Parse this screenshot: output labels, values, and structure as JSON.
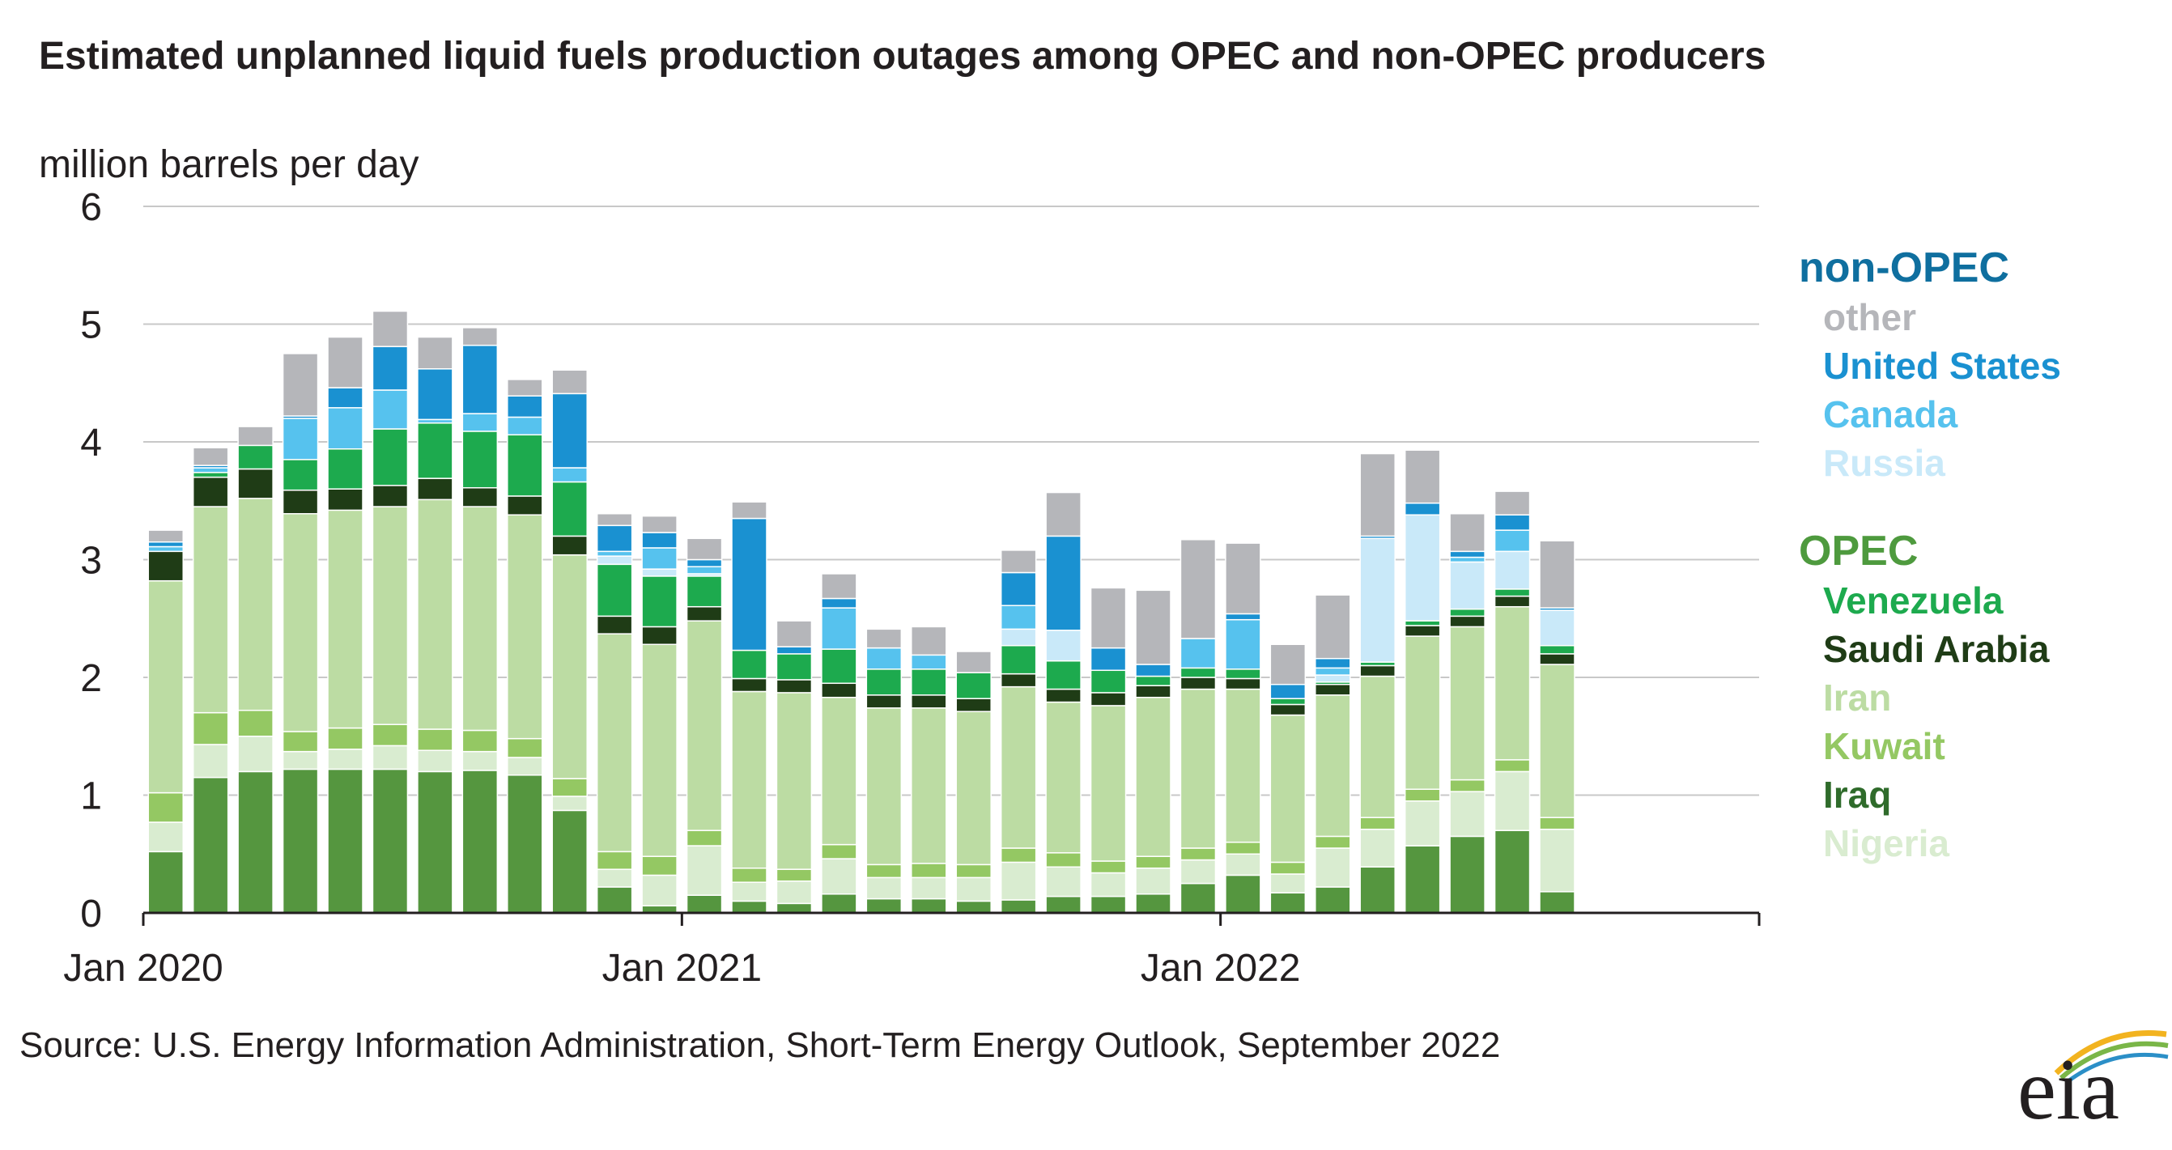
{
  "title": "Estimated unplanned liquid fuels production outages among OPEC and non-OPEC producers",
  "subtitle": "million barrels per day",
  "source": "Source: U.S. Energy Information Administration, Short-Term Energy Outlook, September 2022",
  "logo_text": "eia",
  "chart_data": {
    "type": "bar",
    "stacked": true,
    "title": "Estimated unplanned liquid fuels production outages among OPEC and non-OPEC producers",
    "ylabel": "million barrels per day",
    "xlabel": "",
    "ylim": [
      0,
      6
    ],
    "yticks": [
      0,
      1,
      2,
      3,
      4,
      5,
      6
    ],
    "x_tick_labels": [
      "Jan 2020",
      "Jan 2021",
      "Jan 2022"
    ],
    "categories": [
      "Jan 2020",
      "Feb 2020",
      "Mar 2020",
      "Apr 2020",
      "May 2020",
      "Jun 2020",
      "Jul 2020",
      "Aug 2020",
      "Sep 2020",
      "Oct 2020",
      "Nov 2020",
      "Dec 2020",
      "Jan 2021",
      "Feb 2021",
      "Mar 2021",
      "Apr 2021",
      "May 2021",
      "Jun 2021",
      "Jul 2021",
      "Aug 2021",
      "Sep 2021",
      "Oct 2021",
      "Nov 2021",
      "Dec 2021",
      "Jan 2022",
      "Feb 2022",
      "Mar 2022",
      "Apr 2022",
      "May 2022",
      "Jun 2022",
      "Jul 2022",
      "Aug 2022",
      "Sep 2022"
    ],
    "grid": true,
    "legend_groups": [
      {
        "label": "non-OPEC",
        "color": "#0f6f9f",
        "items": [
          {
            "label": "other",
            "color": "#b5b6ba"
          },
          {
            "label": "United States",
            "color": "#1a91d1"
          },
          {
            "label": "Canada",
            "color": "#56c2ee"
          },
          {
            "label": "Russia",
            "color": "#c9e9f9"
          }
        ]
      },
      {
        "label": "OPEC",
        "color": "#4e9a3e",
        "items": [
          {
            "label": "Venezuela",
            "color": "#1daa4e"
          },
          {
            "label": "Saudi Arabia",
            "color": "#1f3c16"
          },
          {
            "label": "Iran",
            "color": "#bcdca3"
          },
          {
            "label": "Kuwait",
            "color": "#94c863"
          },
          {
            "label": "Iraq",
            "color": "#2f6b2b"
          },
          {
            "label": "Nigeria",
            "color": "#d9ecd0"
          }
        ]
      }
    ],
    "series": [
      {
        "name": "Iraq",
        "color": "#55963f",
        "values": [
          0.52,
          1.15,
          1.2,
          1.22,
          1.22,
          1.22,
          1.2,
          1.21,
          1.17,
          0.87,
          0.22,
          0.06,
          0.15,
          0.1,
          0.08,
          0.16,
          0.12,
          0.12,
          0.1,
          0.11,
          0.14,
          0.14,
          0.16,
          0.25,
          0.32,
          0.17,
          0.22,
          0.39,
          0.57,
          0.65,
          0.7,
          0.18,
          0.0
        ]
      },
      {
        "name": "Nigeria",
        "color": "#d9ecd0",
        "values": [
          0.25,
          0.28,
          0.3,
          0.15,
          0.17,
          0.2,
          0.18,
          0.16,
          0.15,
          0.12,
          0.15,
          0.26,
          0.42,
          0.16,
          0.19,
          0.3,
          0.18,
          0.18,
          0.2,
          0.32,
          0.25,
          0.2,
          0.22,
          0.2,
          0.18,
          0.16,
          0.33,
          0.32,
          0.38,
          0.38,
          0.5,
          0.53,
          0.0
        ]
      },
      {
        "name": "Kuwait",
        "color": "#94c863",
        "values": [
          0.25,
          0.27,
          0.22,
          0.17,
          0.18,
          0.18,
          0.18,
          0.18,
          0.16,
          0.15,
          0.15,
          0.16,
          0.13,
          0.12,
          0.1,
          0.12,
          0.11,
          0.12,
          0.11,
          0.12,
          0.12,
          0.1,
          0.1,
          0.1,
          0.1,
          0.1,
          0.1,
          0.1,
          0.1,
          0.1,
          0.1,
          0.1,
          0.0
        ]
      },
      {
        "name": "Iran",
        "color": "#bcdca3",
        "values": [
          1.8,
          1.75,
          1.8,
          1.85,
          1.85,
          1.85,
          1.95,
          1.9,
          1.9,
          1.9,
          1.85,
          1.8,
          1.78,
          1.5,
          1.5,
          1.25,
          1.33,
          1.32,
          1.3,
          1.37,
          1.28,
          1.32,
          1.35,
          1.35,
          1.3,
          1.25,
          1.2,
          1.2,
          1.3,
          1.3,
          1.3,
          1.3,
          0.0
        ]
      },
      {
        "name": "Saudi Arabia",
        "color": "#1f3c16",
        "values": [
          0.25,
          0.25,
          0.25,
          0.2,
          0.18,
          0.18,
          0.18,
          0.16,
          0.16,
          0.16,
          0.15,
          0.15,
          0.12,
          0.11,
          0.11,
          0.12,
          0.11,
          0.11,
          0.11,
          0.11,
          0.11,
          0.11,
          0.1,
          0.1,
          0.09,
          0.09,
          0.09,
          0.09,
          0.09,
          0.09,
          0.09,
          0.09,
          0.0
        ]
      },
      {
        "name": "Venezuela",
        "color": "#1daa4e",
        "values": [
          0.0,
          0.04,
          0.2,
          0.26,
          0.34,
          0.48,
          0.47,
          0.48,
          0.52,
          0.46,
          0.44,
          0.43,
          0.26,
          0.24,
          0.22,
          0.29,
          0.22,
          0.22,
          0.22,
          0.24,
          0.24,
          0.19,
          0.08,
          0.08,
          0.08,
          0.05,
          0.02,
          0.03,
          0.04,
          0.06,
          0.06,
          0.07,
          0.0
        ]
      },
      {
        "name": "Russia",
        "color": "#c9e9f9",
        "values": [
          0.0,
          0.0,
          0.0,
          0.0,
          0.0,
          0.0,
          0.0,
          0.0,
          0.0,
          0.0,
          0.07,
          0.06,
          0.02,
          0.0,
          0.0,
          0.0,
          0.0,
          0.0,
          0.0,
          0.14,
          0.26,
          0.0,
          0.0,
          0.0,
          0.0,
          0.0,
          0.06,
          1.05,
          0.9,
          0.4,
          0.32,
          0.3,
          0.0
        ]
      },
      {
        "name": "Canada",
        "color": "#56c2ee",
        "values": [
          0.04,
          0.04,
          0.0,
          0.35,
          0.35,
          0.33,
          0.03,
          0.15,
          0.15,
          0.12,
          0.04,
          0.18,
          0.06,
          0.0,
          0.0,
          0.35,
          0.18,
          0.12,
          0.0,
          0.2,
          0.0,
          0.0,
          0.0,
          0.25,
          0.42,
          0.0,
          0.06,
          0.0,
          0.0,
          0.04,
          0.18,
          0.0,
          0.0
        ]
      },
      {
        "name": "United States",
        "color": "#1a91d1",
        "values": [
          0.04,
          0.02,
          0.0,
          0.02,
          0.17,
          0.37,
          0.43,
          0.58,
          0.18,
          0.63,
          0.22,
          0.13,
          0.06,
          1.12,
          0.06,
          0.08,
          0.0,
          0.0,
          0.0,
          0.28,
          0.8,
          0.19,
          0.1,
          0.0,
          0.05,
          0.12,
          0.08,
          0.02,
          0.1,
          0.05,
          0.13,
          0.02,
          0.0
        ]
      },
      {
        "name": "other",
        "color": "#b5b6ba",
        "values": [
          0.1,
          0.15,
          0.16,
          0.53,
          0.43,
          0.3,
          0.27,
          0.15,
          0.14,
          0.2,
          0.1,
          0.14,
          0.18,
          0.14,
          0.22,
          0.21,
          0.16,
          0.24,
          0.18,
          0.19,
          0.37,
          0.51,
          0.63,
          0.84,
          0.6,
          0.34,
          0.54,
          0.7,
          0.45,
          0.32,
          0.2,
          0.57,
          0.0
        ]
      }
    ]
  }
}
